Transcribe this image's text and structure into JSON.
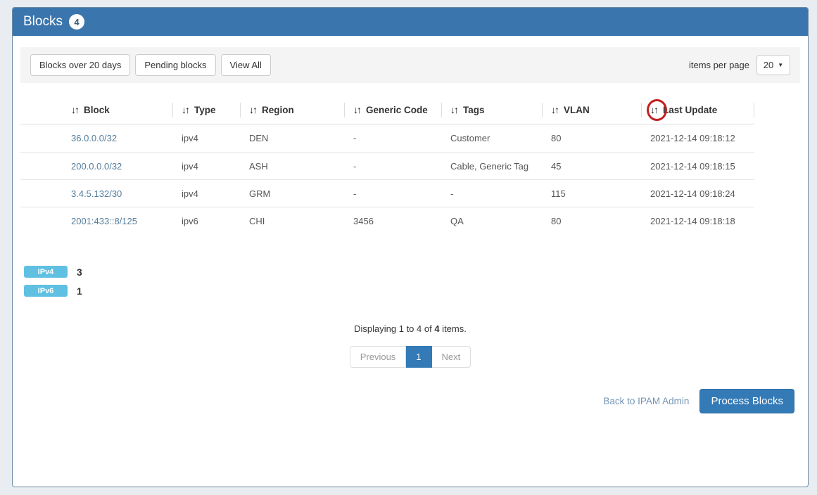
{
  "page": {
    "title": "Blocks",
    "count_badge": "4"
  },
  "icons": {
    "sort": "↓↑",
    "caret_down": "▼"
  },
  "toolbar": {
    "buttons": [
      "Blocks over 20 days",
      "Pending blocks",
      "View All"
    ],
    "items_per_page_label": "items per page",
    "items_per_page_value": "20"
  },
  "table": {
    "columns": [
      "Block",
      "Type",
      "Region",
      "Generic Code",
      "Tags",
      "VLAN",
      "Last Update"
    ],
    "rows": [
      {
        "block": "36.0.0.0/32",
        "type": "ipv4",
        "region": "DEN",
        "generic_code": "-",
        "tags": "Customer",
        "vlan": "80",
        "last_update": "2021-12-14 09:18:12"
      },
      {
        "block": "200.0.0.0/32",
        "type": "ipv4",
        "region": "ASH",
        "generic_code": "-",
        "tags": "Cable, Generic Tag",
        "vlan": "45",
        "last_update": "2021-12-14 09:18:15"
      },
      {
        "block": "3.4.5.132/30",
        "type": "ipv4",
        "region": "GRM",
        "generic_code": "-",
        "tags": "-",
        "vlan": "115",
        "last_update": "2021-12-14 09:18:24"
      },
      {
        "block": "2001:433::8/125",
        "type": "ipv6",
        "region": "CHI",
        "generic_code": "3456",
        "tags": "QA",
        "vlan": "80",
        "last_update": "2021-12-14 09:18:18"
      }
    ]
  },
  "summary": {
    "badges": [
      {
        "label": "IPv4",
        "count": "3"
      },
      {
        "label": "IPv6",
        "count": "1"
      }
    ]
  },
  "pagination": {
    "display_prefix": "Displaying 1 to 4 of ",
    "display_total": "4",
    "display_suffix": " items.",
    "previous_label": "Previous",
    "current_page": "1",
    "next_label": "Next"
  },
  "footer": {
    "back_link": "Back to IPAM Admin",
    "process_button": "Process Blocks"
  },
  "annotation": {
    "target": "last-update-sort-icon",
    "shape": "red-circle",
    "color": "#c41f1f"
  },
  "colors": {
    "header_bg": "#3a76ad",
    "primary": "#337ab7",
    "type_badge_bg": "#5fc0e1",
    "block_link": "#537d9b",
    "page_bg": "#e9ecf1"
  }
}
